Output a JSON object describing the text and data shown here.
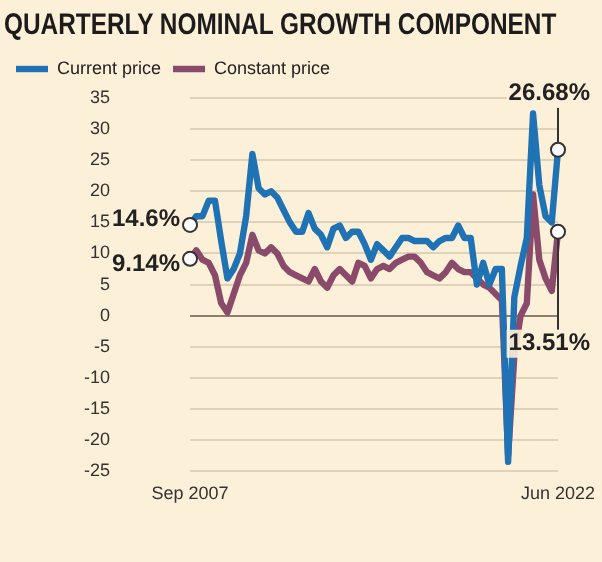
{
  "chart_data": {
    "type": "line",
    "title": "QUARTERLY NOMINAL GROWTH COMPONENT",
    "categories": [
      "Sep 2007",
      null,
      null,
      null,
      null,
      null,
      null,
      null,
      null,
      null,
      null,
      null,
      null,
      null,
      null,
      null,
      null,
      null,
      null,
      null,
      null,
      null,
      null,
      null,
      null,
      null,
      null,
      null,
      null,
      null,
      null,
      null,
      null,
      null,
      null,
      null,
      null,
      null,
      null,
      null,
      null,
      null,
      null,
      null,
      null,
      null,
      null,
      null,
      null,
      null,
      null,
      null,
      null,
      null,
      null,
      null,
      null,
      null,
      null,
      "Jun 2022"
    ],
    "series": [
      {
        "name": "Current price",
        "color": "#1f72b4",
        "values": [
          14.6,
          16,
          16,
          18.5,
          18.5,
          12,
          6,
          7.5,
          10,
          16,
          26,
          20.5,
          19.5,
          20,
          19,
          17,
          15,
          13.5,
          13.5,
          16.5,
          14,
          13,
          11,
          14,
          14.5,
          12.5,
          13.5,
          13.5,
          11.5,
          9,
          11.5,
          10.5,
          9.5,
          11,
          12.5,
          12.5,
          12,
          12,
          12,
          11,
          12,
          12.5,
          12.5,
          14.5,
          12.5,
          12.5,
          5,
          8.5,
          5,
          7.5,
          7.5,
          -23.5,
          3,
          8,
          12.5,
          32.5,
          21,
          16,
          15,
          26.68
        ]
      },
      {
        "name": "Constant price",
        "color": "#8a4b6b",
        "values": [
          9.14,
          10.5,
          9,
          8.5,
          6.5,
          2,
          0.5,
          3.5,
          6.5,
          8.5,
          13,
          10.5,
          10,
          11,
          10,
          8,
          7,
          6.5,
          6,
          5.5,
          7.5,
          5.5,
          4.5,
          6.5,
          7.5,
          6.5,
          5.5,
          8.5,
          8,
          6,
          7.5,
          8,
          7.5,
          8.5,
          9,
          9.5,
          9.5,
          8.5,
          7,
          6.5,
          6,
          7,
          8.5,
          7.5,
          7,
          7,
          6,
          5,
          4.5,
          3.5,
          2.5,
          -22.5,
          -6.5,
          0,
          2,
          19.5,
          9,
          6,
          4,
          13.51
        ]
      }
    ],
    "ylim": [
      -25,
      35
    ],
    "yticks": [
      -25,
      -20,
      -15,
      -10,
      -5,
      0,
      5,
      10,
      15,
      20,
      25,
      30,
      35
    ],
    "grid": "y",
    "legend": "top left",
    "marker": "none",
    "line_style": "solid",
    "annotations": [
      {
        "text": "14.6%",
        "x": "Sep 2007",
        "y": 14.6
      },
      {
        "text": "9.14%",
        "x": "Sep 2007",
        "y": 9.14
      },
      {
        "text": "26.68%",
        "x": "Jun 2022",
        "y": 26.68
      },
      {
        "text": "13.51%",
        "x": "Jun 2022",
        "y": 13.51
      }
    ]
  }
}
